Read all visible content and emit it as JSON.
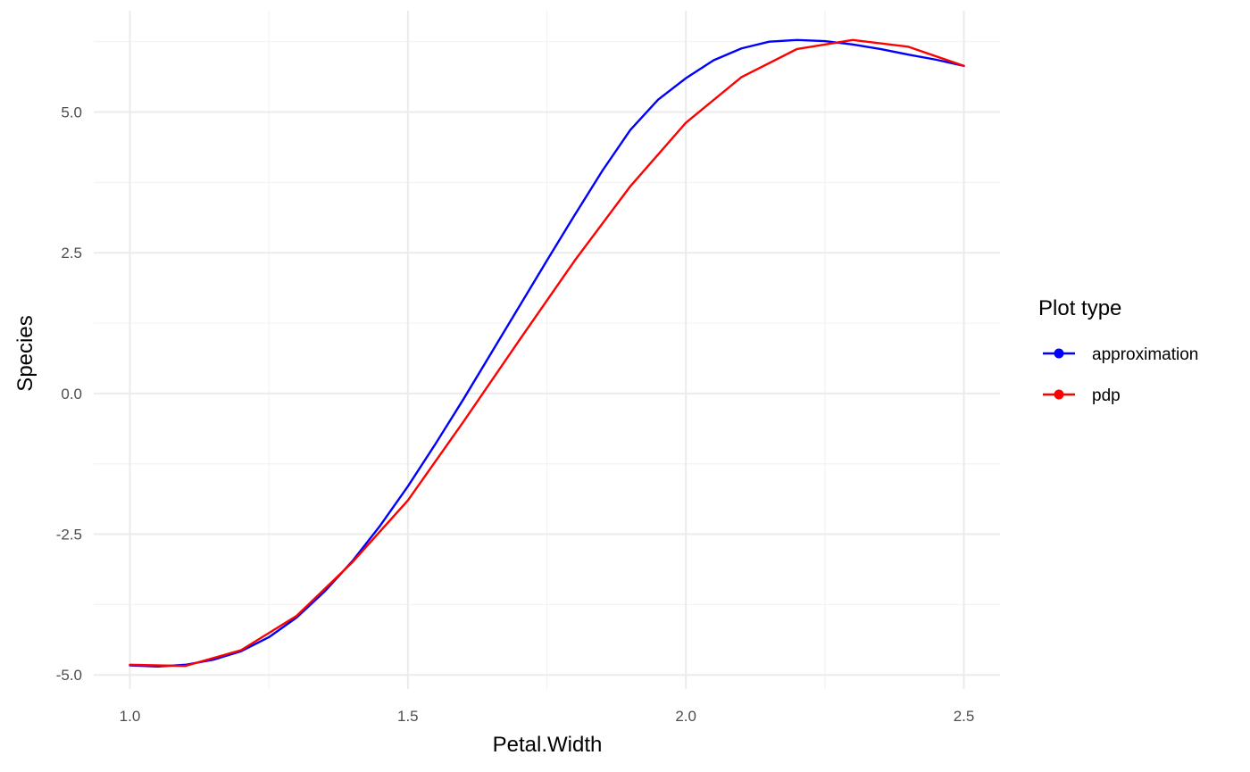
{
  "chart_data": {
    "type": "line",
    "title": "",
    "xlabel": "Petal.Width",
    "ylabel": "Species",
    "xlim": [
      0.935,
      2.565
    ],
    "ylim": [
      -5.25,
      6.8
    ],
    "x_ticks": [
      1.0,
      1.5,
      2.0,
      2.5
    ],
    "x_tick_labels": [
      "1.0",
      "1.5",
      "2.0",
      "2.5"
    ],
    "x_minor_ticks": [
      1.25,
      1.75,
      2.25
    ],
    "y_ticks": [
      -5.0,
      -2.5,
      0.0,
      2.5,
      5.0
    ],
    "y_tick_labels": [
      "-5.0",
      "-2.5",
      "0.0",
      "2.5",
      "5.0"
    ],
    "y_minor_ticks": [
      -3.75,
      -1.25,
      1.25,
      3.75,
      6.25
    ],
    "grid": true,
    "legend": {
      "title": "Plot type",
      "placement": "right"
    },
    "series": [
      {
        "name": "approximation",
        "color": "#0000ff",
        "x": [
          1.0,
          1.05,
          1.1,
          1.15,
          1.2,
          1.25,
          1.3,
          1.35,
          1.4,
          1.45,
          1.5,
          1.55,
          1.6,
          1.65,
          1.7,
          1.75,
          1.8,
          1.85,
          1.9,
          1.95,
          2.0,
          2.05,
          2.1,
          2.15,
          2.2,
          2.25,
          2.3,
          2.35,
          2.4,
          2.45,
          2.5
        ],
        "y": [
          -4.83,
          -4.85,
          -4.82,
          -4.73,
          -4.58,
          -4.33,
          -3.98,
          -3.52,
          -2.98,
          -2.35,
          -1.65,
          -0.89,
          -0.1,
          0.72,
          1.54,
          2.36,
          3.17,
          3.96,
          4.68,
          5.22,
          5.6,
          5.92,
          6.13,
          6.25,
          6.28,
          6.26,
          6.2,
          6.12,
          6.02,
          5.93,
          5.82
        ]
      },
      {
        "name": "pdp",
        "color": "#ff0000",
        "x": [
          1.0,
          1.1,
          1.2,
          1.3,
          1.4,
          1.5,
          1.6,
          1.7,
          1.8,
          1.9,
          2.0,
          2.1,
          2.2,
          2.3,
          2.4,
          2.5
        ],
        "y": [
          -4.82,
          -4.84,
          -4.56,
          -3.95,
          -3.0,
          -1.9,
          -0.5,
          0.94,
          2.36,
          3.68,
          4.81,
          5.62,
          6.12,
          6.28,
          6.16,
          5.82
        ]
      }
    ]
  }
}
